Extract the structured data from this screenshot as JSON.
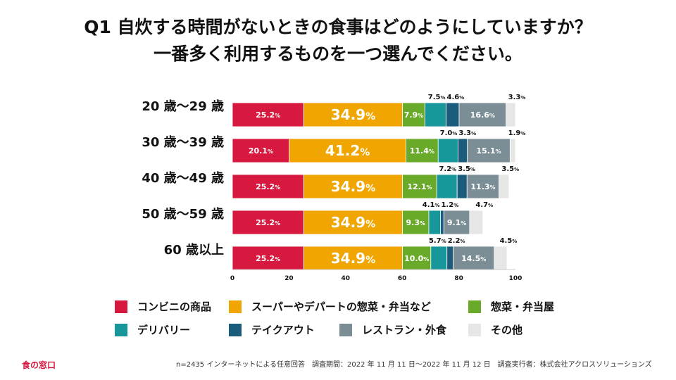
{
  "title": {
    "line1": "Q1 自炊する時間がないときの食事はどのようにしていますか？",
    "line2": "一番多く利用するものを一つ選んでください。"
  },
  "chart_data": {
    "type": "bar",
    "orientation": "horizontal",
    "stacked": true,
    "percent_unit": "%",
    "categories": [
      "20 歳〜29 歳",
      "30 歳〜39 歳",
      "40 歳〜49 歳",
      "50 歳〜59 歳",
      "60 歳以上"
    ],
    "xlim": [
      0,
      100
    ],
    "xticks": [
      "0",
      "20",
      "40",
      "60",
      "80",
      "100"
    ],
    "series": [
      {
        "name": "コンビニの商品",
        "color": "#d7193f",
        "values": [
          25.2,
          20.1,
          25.2,
          25.2,
          25.2
        ],
        "labels": [
          "25.2",
          "20.1",
          "25.2",
          "25.2",
          "25.2"
        ]
      },
      {
        "name": "スーパーやデパートの惣菜・弁当など",
        "color": "#f0a500",
        "values": [
          34.9,
          41.2,
          34.9,
          34.9,
          34.9
        ],
        "labels": [
          "34.9",
          "41.2",
          "34.9",
          "34.9",
          "34.9"
        ]
      },
      {
        "name": "惣菜・弁当屋",
        "color": "#6aaa2b",
        "values": [
          7.9,
          11.4,
          12.1,
          9.3,
          10.0
        ],
        "labels": [
          "7.9",
          "11.4",
          "12.1",
          "9.3",
          "10.0"
        ]
      },
      {
        "name": "デリバリー",
        "color": "#17979a",
        "values": [
          7.5,
          7.0,
          7.2,
          4.1,
          5.7
        ],
        "labels": [
          "7.5",
          "7.0",
          "7.2",
          "4.1",
          "5.7"
        ]
      },
      {
        "name": "テイクアウト",
        "color": "#1b5b7b",
        "values": [
          4.6,
          3.3,
          3.5,
          1.2,
          2.2
        ],
        "labels": [
          "4.6",
          "3.3",
          "3.5",
          "1.2",
          "2.2"
        ]
      },
      {
        "name": "レストラン・外食",
        "color": "#7b8d95",
        "values": [
          16.6,
          15.1,
          11.3,
          9.1,
          14.5
        ],
        "labels": [
          "16.6",
          "15.1",
          "11.3",
          "9.1",
          "14.5"
        ]
      },
      {
        "name": "その他",
        "color": "#e6e6e6",
        "values": [
          3.3,
          1.9,
          3.5,
          4.7,
          4.5
        ],
        "labels": [
          "3.3",
          "1.9",
          "3.5",
          "4.7",
          "4.5"
        ]
      }
    ]
  },
  "footer": {
    "note": "n=2435 インターネットによる任意回答　調査期間：2022 年 11 月 11 日〜2022 年 11 月 12 日　調査実行者：株式会社アクロスソリューションズ",
    "logo": "食の窓口"
  }
}
